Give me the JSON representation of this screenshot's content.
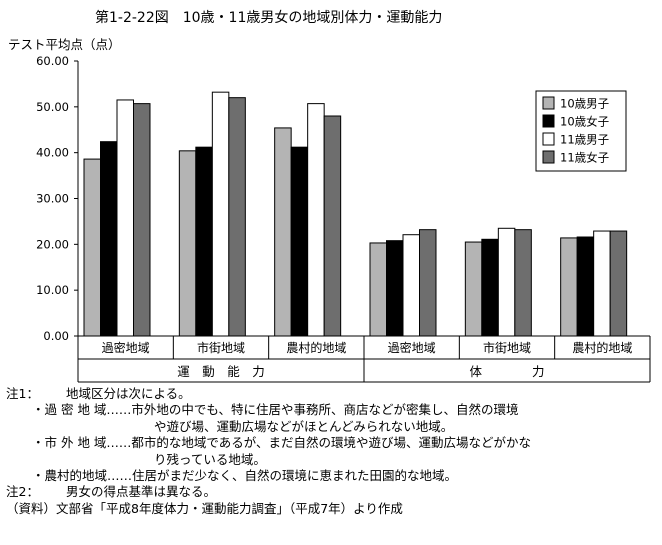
{
  "chart_data": {
    "type": "bar",
    "title": "第1-2-22図　10歳・11歳男女の地域別体力・運動能力",
    "ylabel": "テスト平均点（点）",
    "ylim": [
      0,
      60
    ],
    "yticks": [
      "60.00",
      "50.00",
      "40.00",
      "30.00",
      "20.00",
      "10.00",
      "0.00"
    ],
    "grid": false,
    "legend_position": "top-right",
    "groups": [
      "運　動　能　力",
      "体　　　　力"
    ],
    "categories": [
      "過密地域",
      "市街地域",
      "農村的地域",
      "過密地域",
      "市街地域",
      "農村的地域"
    ],
    "series": [
      {
        "name": "10歳男子",
        "color": "#b4b4b4",
        "values": [
          38.6,
          40.4,
          45.4,
          20.3,
          20.5,
          21.4
        ]
      },
      {
        "name": "10歳女子",
        "color": "#000000",
        "values": [
          42.4,
          41.2,
          41.2,
          20.8,
          21.1,
          21.6
        ]
      },
      {
        "name": "11歳男子",
        "color": "#ffffff",
        "values": [
          51.5,
          53.2,
          50.7,
          22.1,
          23.5,
          22.9
        ]
      },
      {
        "name": "11歳女子",
        "color": "#6e6e6e",
        "values": [
          50.7,
          52.0,
          48.0,
          23.2,
          23.2,
          22.9
        ]
      }
    ]
  },
  "notes": {
    "note1_label": "注1：",
    "note1_text": "地域区分は次による。",
    "area1_label": "・過 密 地 域",
    "area1_text1": "……市外地の中でも、特に住居や事務所、商店などが密集し、自然の環境",
    "area1_text2": "や遊び場、運動広場などがほとんどみられない地域。",
    "area2_label": "・市 外 地 域",
    "area2_text1": "……都市的な地域であるが、まだ自然の環境や遊び場、運動広場などがかな",
    "area2_text2": "り残っている地域。",
    "area3_label": "・農村的地域",
    "area3_text1": "……住居がまだ少なく、自然の環境に恵まれた田園的な地域。",
    "note2_label": "注2：",
    "note2_text": "男女の得点基準は異なる。",
    "source": "（資料）文部省「平成8年度体力・運動能力調査」（平成7年）より作成"
  }
}
